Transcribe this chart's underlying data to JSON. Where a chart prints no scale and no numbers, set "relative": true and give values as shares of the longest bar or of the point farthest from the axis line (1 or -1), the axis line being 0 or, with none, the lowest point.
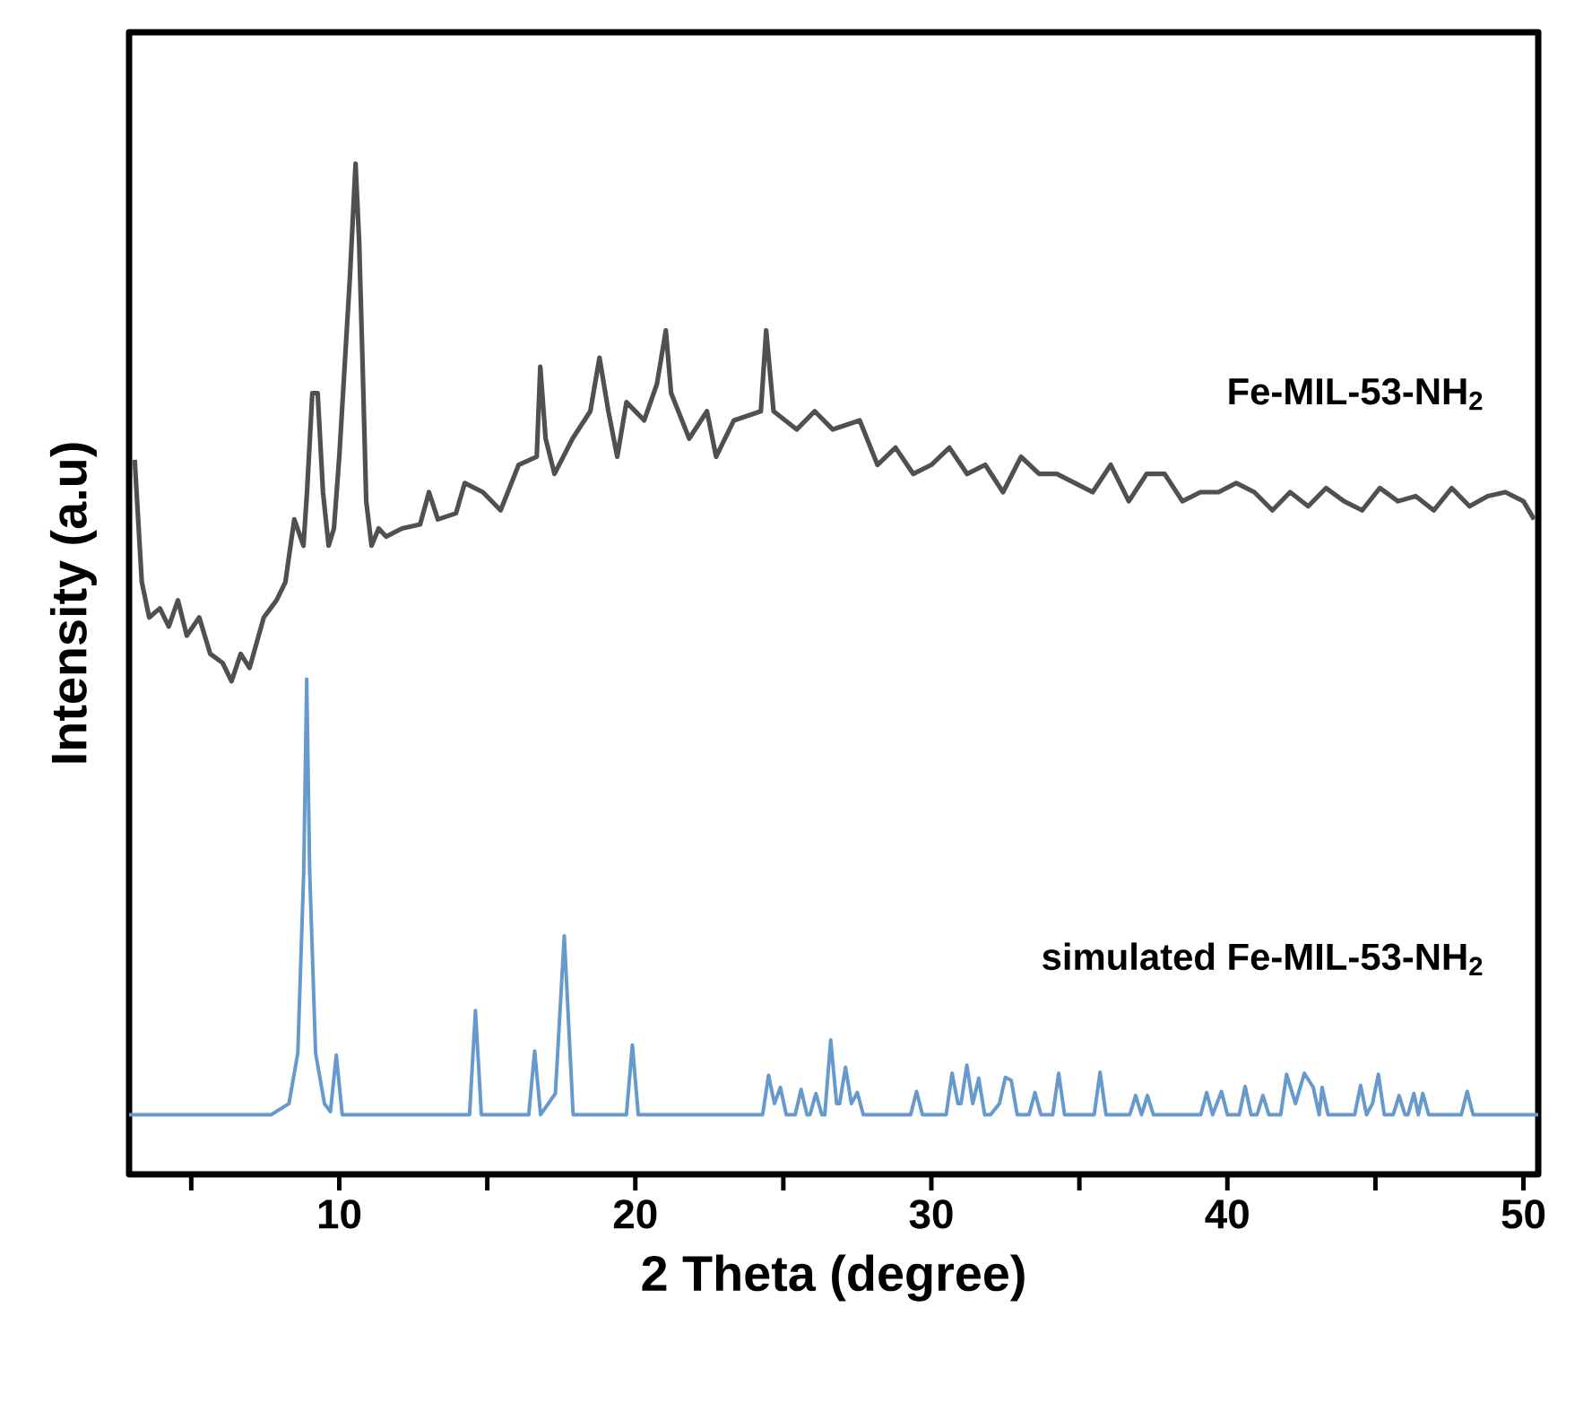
{
  "chart_data": {
    "type": "line",
    "xlabel": "2 Theta (degree)",
    "ylabel": "Intensity (a.u)",
    "relative": true,
    "tick_labels": "x",
    "marker": "none",
    "line_style": "solid",
    "xlim": [
      2.9,
      50.5
    ],
    "xticks": [
      {
        "value": 5,
        "label": null
      },
      10,
      {
        "value": 15,
        "label": null
      },
      20,
      {
        "value": 25,
        "label": null
      },
      30,
      {
        "value": 35,
        "label": null
      },
      40,
      {
        "value": 45,
        "label": null
      },
      50
    ],
    "series": [
      {
        "name": "Fe-MIL-53-NH$_{2}$",
        "color": "#505050",
        "x": [
          3.09,
          3.33,
          3.58,
          3.94,
          4.24,
          4.55,
          4.85,
          5.27,
          5.64,
          6.06,
          6.36,
          6.67,
          6.97,
          7.45,
          7.88,
          8.18,
          8.48,
          8.79,
          8.91,
          9.09,
          9.27,
          9.45,
          9.64,
          9.82,
          10.0,
          10.18,
          10.36,
          10.55,
          10.67,
          10.79,
          10.91,
          11.09,
          11.33,
          11.58,
          12.12,
          12.73,
          13.03,
          13.33,
          13.94,
          14.24,
          14.85,
          15.45,
          16.06,
          16.67,
          16.79,
          16.97,
          17.27,
          17.88,
          18.48,
          18.79,
          19.09,
          19.39,
          19.7,
          20.3,
          20.73,
          21.03,
          21.21,
          21.82,
          22.42,
          22.73,
          23.33,
          24.24,
          24.42,
          24.67,
          25.45,
          26.06,
          26.67,
          27.58,
          28.18,
          28.79,
          29.39,
          30.0,
          30.61,
          31.21,
          31.82,
          32.42,
          33.03,
          33.64,
          34.24,
          34.85,
          35.45,
          36.06,
          36.67,
          37.27,
          37.88,
          38.48,
          39.09,
          39.7,
          40.3,
          40.91,
          41.52,
          42.12,
          42.73,
          43.33,
          43.94,
          44.55,
          45.15,
          45.76,
          46.36,
          46.97,
          47.58,
          48.18,
          48.79,
          49.39,
          50.0,
          50.36
        ],
        "values": [
          0.707,
          0.586,
          0.551,
          0.56,
          0.542,
          0.568,
          0.533,
          0.551,
          0.515,
          0.506,
          0.488,
          0.515,
          0.501,
          0.551,
          0.568,
          0.586,
          0.648,
          0.622,
          0.675,
          0.773,
          0.773,
          0.675,
          0.622,
          0.639,
          0.71,
          0.799,
          0.888,
          1,
          0.924,
          0.799,
          0.666,
          0.622,
          0.639,
          0.631,
          0.639,
          0.643,
          0.675,
          0.648,
          0.654,
          0.684,
          0.675,
          0.657,
          0.702,
          0.71,
          0.799,
          0.728,
          0.693,
          0.728,
          0.755,
          0.808,
          0.755,
          0.71,
          0.764,
          0.746,
          0.782,
          0.835,
          0.773,
          0.728,
          0.755,
          0.71,
          0.746,
          0.755,
          0.835,
          0.755,
          0.737,
          0.755,
          0.737,
          0.746,
          0.702,
          0.719,
          0.693,
          0.702,
          0.719,
          0.693,
          0.702,
          0.675,
          0.71,
          0.693,
          0.693,
          0.684,
          0.675,
          0.702,
          0.666,
          0.693,
          0.693,
          0.666,
          0.675,
          0.675,
          0.684,
          0.675,
          0.657,
          0.675,
          0.661,
          0.679,
          0.666,
          0.657,
          0.679,
          0.666,
          0.671,
          0.657,
          0.679,
          0.661,
          0.671,
          0.675,
          0.666,
          0.648
        ]
      },
      {
        "name": "simulated Fe-MIL-53-NH$_{2}$",
        "color": "#6699cc",
        "x": [
          2.9,
          7.7,
          8.3,
          8.6,
          8.8,
          8.9,
          9.0,
          9.2,
          9.5,
          9.7,
          9.9,
          10.1,
          14.4,
          14.6,
          14.8,
          16.4,
          16.6,
          16.8,
          17.3,
          17.6,
          17.9,
          19.7,
          19.9,
          20.1,
          24.3,
          24.5,
          24.7,
          24.9,
          25.1,
          25.4,
          25.6,
          25.8,
          25.9,
          26.1,
          26.3,
          26.4,
          26.6,
          26.8,
          26.9,
          27.1,
          27.3,
          27.5,
          27.7,
          29.3,
          29.5,
          29.7,
          30.5,
          30.7,
          30.9,
          31.0,
          31.2,
          31.4,
          31.6,
          31.8,
          32.0,
          32.3,
          32.5,
          32.7,
          32.9,
          33.3,
          33.5,
          33.7,
          34.1,
          34.3,
          34.5,
          35.5,
          35.7,
          35.9,
          36.7,
          36.9,
          37.1,
          37.3,
          37.5,
          39.1,
          39.3,
          39.5,
          39.8,
          40.0,
          40.4,
          40.6,
          40.8,
          41.0,
          41.2,
          41.4,
          41.8,
          42.0,
          42.3,
          42.6,
          42.9,
          43.1,
          43.2,
          43.4,
          43.6,
          44.3,
          44.5,
          44.7,
          44.9,
          45.1,
          45.3,
          45.6,
          45.8,
          46.0,
          46.1,
          46.3,
          46.45,
          46.6,
          46.8,
          47.9,
          48.1,
          48.3,
          50.5
        ],
        "values": [
          0.059,
          0.059,
          0.07,
          0.12,
          0.3,
          0.49,
          0.3,
          0.12,
          0.07,
          0.062,
          0.118,
          0.059,
          0.059,
          0.162,
          0.059,
          0.059,
          0.122,
          0.059,
          0.08,
          0.236,
          0.059,
          0.059,
          0.128,
          0.059,
          0.059,
          0.098,
          0.07,
          0.086,
          0.059,
          0.059,
          0.084,
          0.059,
          0.059,
          0.08,
          0.059,
          0.059,
          0.133,
          0.07,
          0.07,
          0.106,
          0.07,
          0.081,
          0.059,
          0.059,
          0.082,
          0.059,
          0.059,
          0.1,
          0.07,
          0.07,
          0.108,
          0.07,
          0.095,
          0.059,
          0.059,
          0.07,
          0.096,
          0.093,
          0.059,
          0.059,
          0.081,
          0.059,
          0.059,
          0.1,
          0.059,
          0.059,
          0.101,
          0.059,
          0.059,
          0.078,
          0.059,
          0.078,
          0.059,
          0.059,
          0.081,
          0.059,
          0.082,
          0.059,
          0.059,
          0.087,
          0.059,
          0.059,
          0.078,
          0.059,
          0.059,
          0.099,
          0.07,
          0.1,
          0.086,
          0.059,
          0.086,
          0.059,
          0.059,
          0.059,
          0.088,
          0.059,
          0.07,
          0.099,
          0.059,
          0.059,
          0.078,
          0.059,
          0.059,
          0.08,
          0.059,
          0.08,
          0.059,
          0.059,
          0.082,
          0.059,
          0.059
        ]
      }
    ]
  }
}
